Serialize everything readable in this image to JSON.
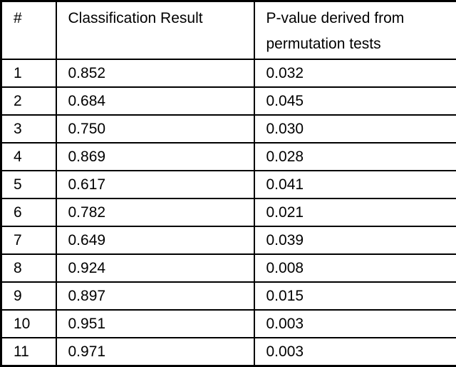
{
  "table": {
    "headers": [
      "#",
      "Classification Result",
      "P-value derived from permutation tests"
    ],
    "rows": [
      [
        "1",
        "0.852",
        "0.032"
      ],
      [
        "2",
        "0.684",
        "0.045"
      ],
      [
        "3",
        "0.750",
        "0.030"
      ],
      [
        "4",
        "0.869",
        "0.028"
      ],
      [
        "5",
        "0.617",
        "0.041"
      ],
      [
        "6",
        "0.782",
        "0.021"
      ],
      [
        "7",
        "0.649",
        "0.039"
      ],
      [
        "8",
        "0.924",
        "0.008"
      ],
      [
        "9",
        "0.897",
        "0.015"
      ],
      [
        "10",
        "0.951",
        "0.003"
      ],
      [
        "11",
        "0.971",
        "0.003"
      ]
    ],
    "colors": {
      "border": "#000000",
      "text": "#000000",
      "background": "#ffffff"
    }
  }
}
